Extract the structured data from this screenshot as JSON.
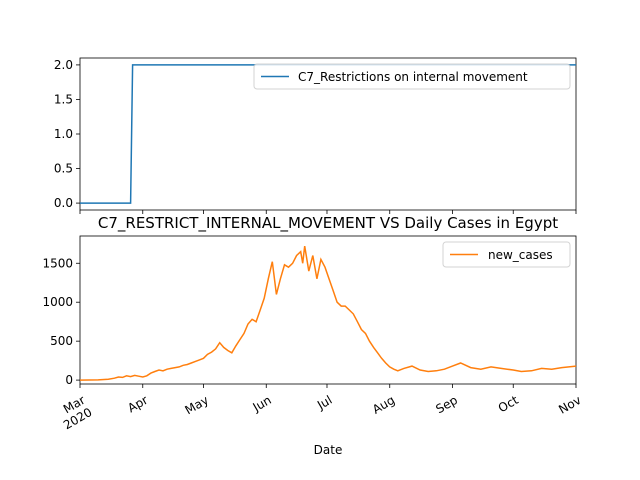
{
  "chart_data": [
    {
      "type": "line",
      "title": "",
      "xlabel": "",
      "ylabel": "",
      "ylim": [
        -0.1,
        2.1
      ],
      "xlim": [
        "2020-03-01",
        "2020-11-01"
      ],
      "yticks": [
        0.0,
        0.5,
        1.0,
        1.5,
        2.0
      ],
      "ytick_labels": [
        "0.0",
        "0.5",
        "1.0",
        "1.5",
        "2.0"
      ],
      "legend_position": "upper right",
      "series": [
        {
          "name": "C7_Restrictions on internal movement",
          "color": "#1f77b4",
          "x": [
            "2020-03-01",
            "2020-03-26",
            "2020-03-27",
            "2020-11-01"
          ],
          "y": [
            0,
            0,
            2,
            2
          ]
        }
      ]
    },
    {
      "type": "line",
      "title": "C7_RESTRICT_INTERNAL_MOVEMENT VS Daily Cases in Egypt",
      "xlabel": "Date",
      "ylabel": "",
      "ylim": [
        -50,
        1850
      ],
      "xlim": [
        "2020-03-01",
        "2020-11-01"
      ],
      "yticks": [
        0,
        500,
        1000,
        1500
      ],
      "ytick_labels": [
        "0",
        "500",
        "1000",
        "1500"
      ],
      "xtick_labels": [
        {
          "date": "2020-03-01",
          "label": "Mar",
          "sublabel": "2020"
        },
        {
          "date": "2020-04-01",
          "label": "Apr",
          "sublabel": ""
        },
        {
          "date": "2020-05-01",
          "label": "May",
          "sublabel": ""
        },
        {
          "date": "2020-06-01",
          "label": "Jun",
          "sublabel": ""
        },
        {
          "date": "2020-07-01",
          "label": "Jul",
          "sublabel": ""
        },
        {
          "date": "2020-08-01",
          "label": "Aug",
          "sublabel": ""
        },
        {
          "date": "2020-09-01",
          "label": "Sep",
          "sublabel": ""
        },
        {
          "date": "2020-10-01",
          "label": "Oct",
          "sublabel": ""
        },
        {
          "date": "2020-11-01",
          "label": "Nov",
          "sublabel": ""
        }
      ],
      "legend_position": "upper right",
      "series": [
        {
          "name": "new_cases",
          "color": "#ff7f0e",
          "x": [
            "2020-03-01",
            "2020-03-10",
            "2020-03-15",
            "2020-03-18",
            "2020-03-20",
            "2020-03-22",
            "2020-03-24",
            "2020-03-26",
            "2020-03-28",
            "2020-03-30",
            "2020-04-01",
            "2020-04-03",
            "2020-04-05",
            "2020-04-07",
            "2020-04-09",
            "2020-04-11",
            "2020-04-13",
            "2020-04-15",
            "2020-04-17",
            "2020-04-19",
            "2020-04-21",
            "2020-04-23",
            "2020-04-25",
            "2020-04-27",
            "2020-04-29",
            "2020-05-01",
            "2020-05-03",
            "2020-05-05",
            "2020-05-07",
            "2020-05-09",
            "2020-05-11",
            "2020-05-13",
            "2020-05-15",
            "2020-05-17",
            "2020-05-19",
            "2020-05-21",
            "2020-05-23",
            "2020-05-25",
            "2020-05-27",
            "2020-05-29",
            "2020-05-31",
            "2020-06-02",
            "2020-06-04",
            "2020-06-06",
            "2020-06-08",
            "2020-06-10",
            "2020-06-12",
            "2020-06-14",
            "2020-06-16",
            "2020-06-18",
            "2020-06-19",
            "2020-06-20",
            "2020-06-22",
            "2020-06-24",
            "2020-06-26",
            "2020-06-28",
            "2020-06-30",
            "2020-07-02",
            "2020-07-04",
            "2020-07-06",
            "2020-07-08",
            "2020-07-10",
            "2020-07-12",
            "2020-07-14",
            "2020-07-16",
            "2020-07-18",
            "2020-07-20",
            "2020-07-22",
            "2020-07-24",
            "2020-07-26",
            "2020-07-28",
            "2020-07-30",
            "2020-08-01",
            "2020-08-03",
            "2020-08-05",
            "2020-08-08",
            "2020-08-12",
            "2020-08-16",
            "2020-08-20",
            "2020-08-24",
            "2020-08-28",
            "2020-09-01",
            "2020-09-05",
            "2020-09-10",
            "2020-09-15",
            "2020-09-20",
            "2020-09-25",
            "2020-10-01",
            "2020-10-05",
            "2020-10-10",
            "2020-10-15",
            "2020-10-20",
            "2020-10-25",
            "2020-11-01"
          ],
          "y": [
            0,
            3,
            12,
            25,
            40,
            35,
            55,
            45,
            60,
            50,
            40,
            55,
            90,
            110,
            130,
            120,
            140,
            150,
            160,
            170,
            190,
            200,
            220,
            240,
            260,
            280,
            330,
            360,
            400,
            480,
            420,
            380,
            350,
            440,
            520,
            600,
            720,
            780,
            750,
            900,
            1050,
            1300,
            1520,
            1100,
            1300,
            1480,
            1450,
            1500,
            1600,
            1650,
            1500,
            1720,
            1400,
            1600,
            1300,
            1550,
            1450,
            1300,
            1150,
            1000,
            950,
            950,
            900,
            850,
            750,
            650,
            600,
            500,
            420,
            350,
            280,
            220,
            170,
            140,
            120,
            150,
            180,
            130,
            110,
            120,
            140,
            180,
            220,
            160,
            140,
            170,
            150,
            130,
            110,
            120,
            150,
            140,
            160,
            180
          ]
        }
      ]
    }
  ]
}
